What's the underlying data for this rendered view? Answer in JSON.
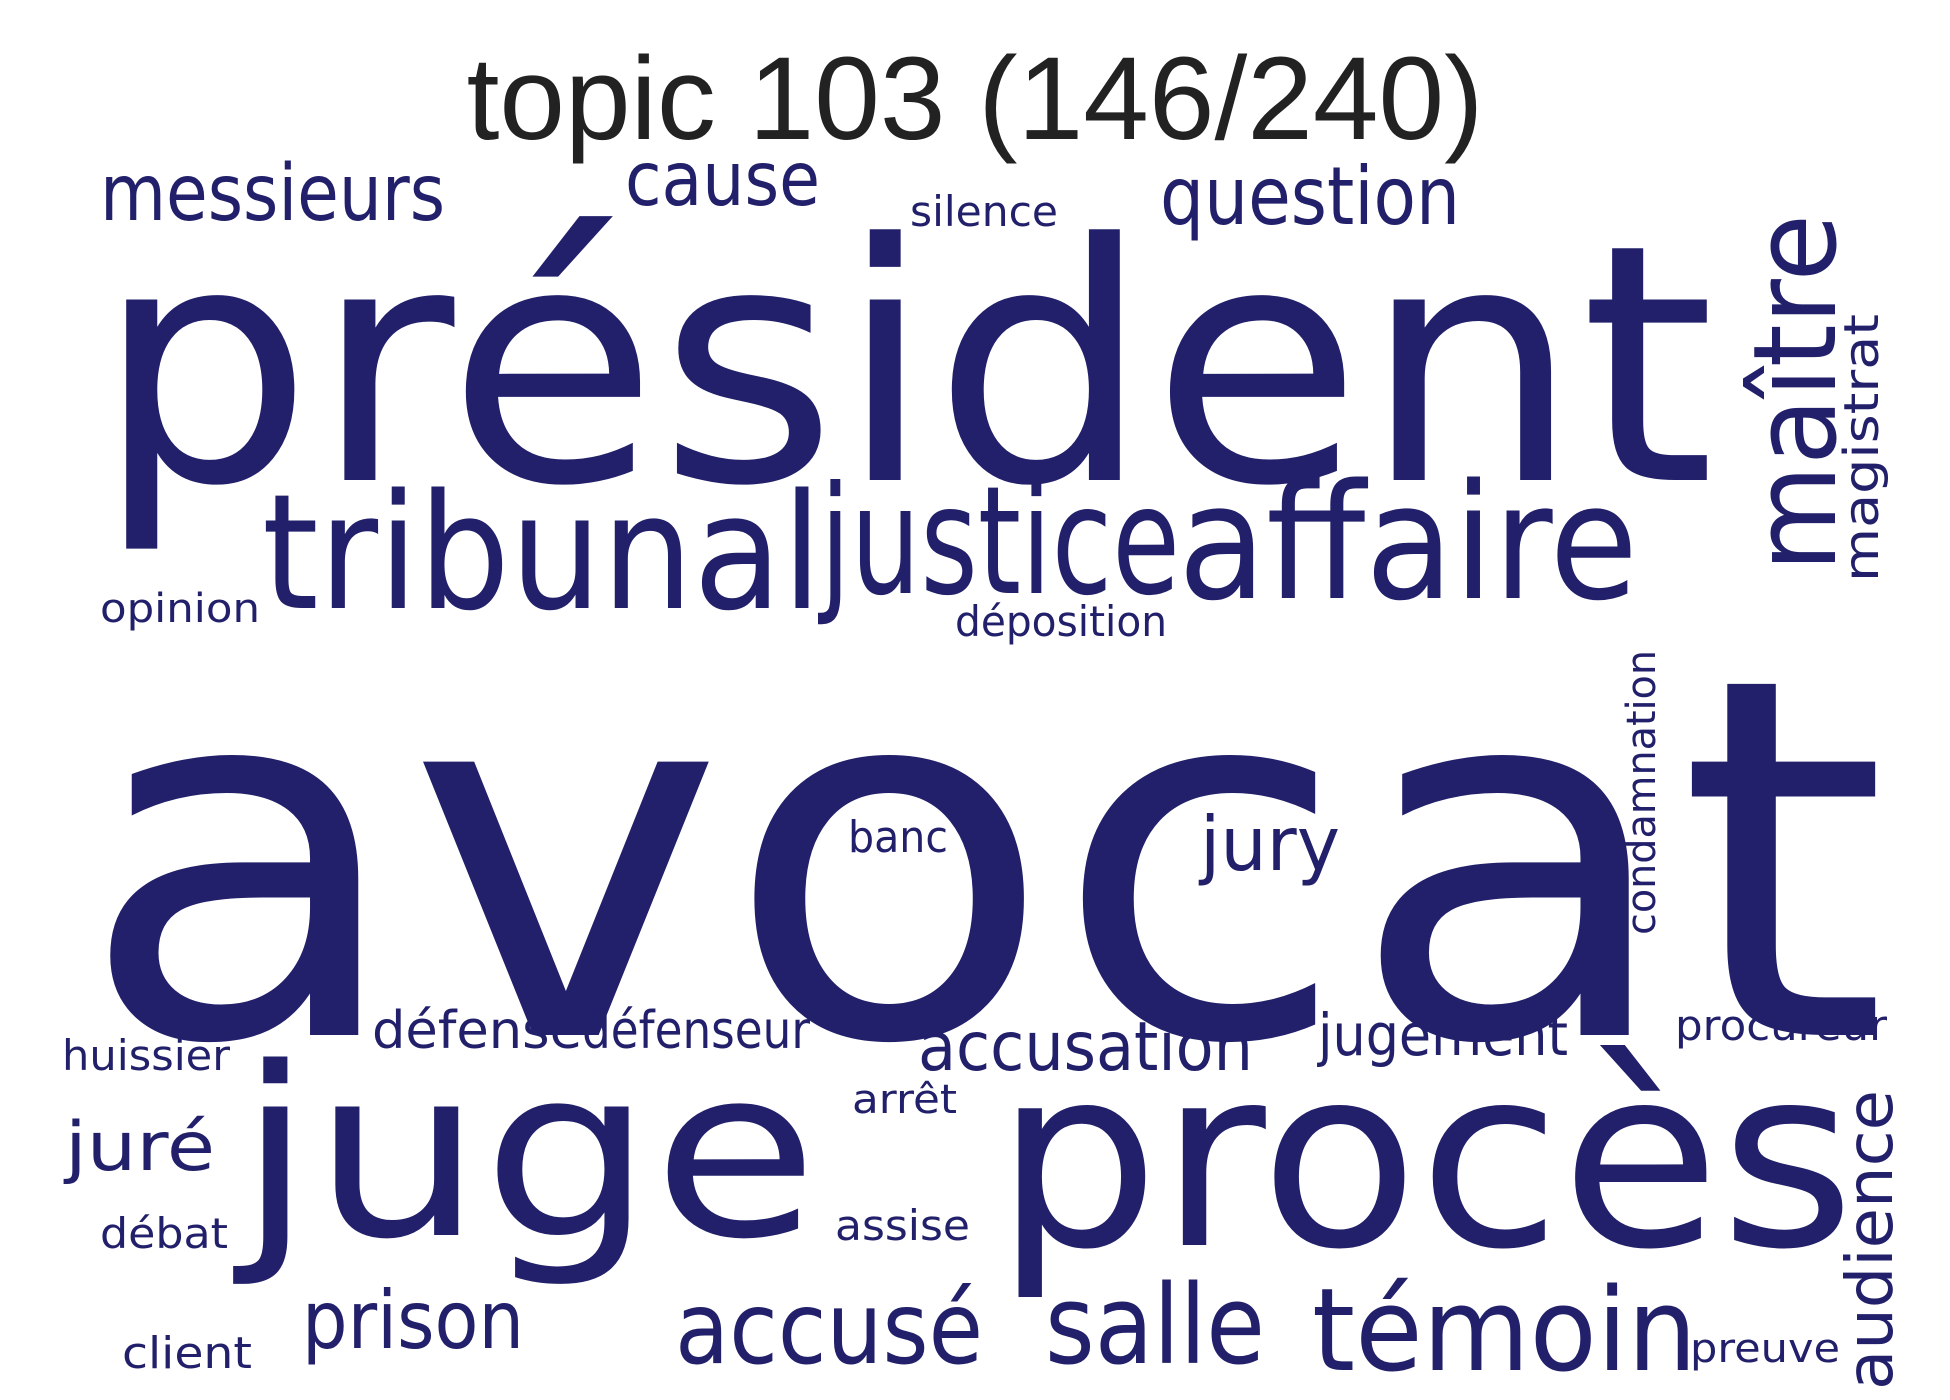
{
  "title": "topic 103 (146/240)",
  "word_color": "#22206a",
  "title_color": "#222222",
  "words": [
    "avocat",
    "président",
    "juge",
    "procès",
    "tribunal",
    "justice",
    "affaire",
    "témoin",
    "salle",
    "accusé",
    "maître",
    "question",
    "messieurs",
    "cause",
    "prison",
    "accusation",
    "jugement",
    "audience",
    "jury",
    "juré",
    "défense",
    "défenseur",
    "magistrat",
    "silence",
    "condamnation",
    "déposition",
    "procureur",
    "huissier",
    "opinion",
    "banc",
    "arrêt",
    "assise",
    "débat",
    "client",
    "preuve"
  ]
}
